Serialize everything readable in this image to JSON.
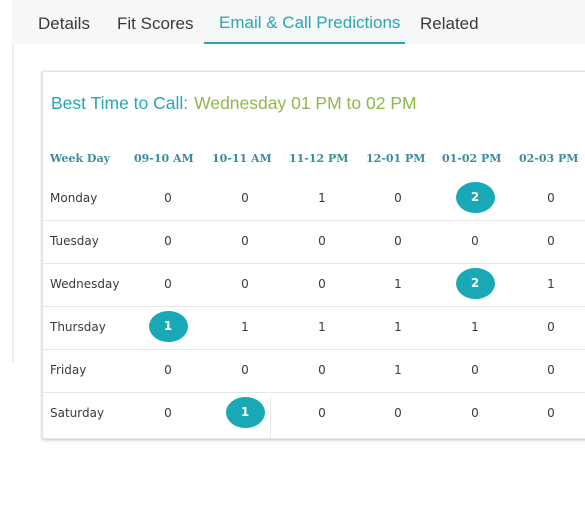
{
  "tabs": [
    {
      "label": "Details",
      "active": false
    },
    {
      "label": "Fit Scores",
      "active": false
    },
    {
      "label": "Email & Call Predictions",
      "active": true
    },
    {
      "label": "Related",
      "active": false
    }
  ],
  "best_time": {
    "label": "Best Time to Call:",
    "value": "Wednesday 01 PM to 02 PM"
  },
  "table": {
    "headers": [
      "Week Day",
      "09-10 AM",
      "10-11 AM",
      "11-12 PM",
      "12-01 PM",
      "01-02 PM",
      "02-03 PM"
    ],
    "rows": [
      {
        "day": "Monday",
        "values": [
          "0",
          "0",
          "1",
          "0",
          "2",
          "0"
        ],
        "highlight": [
          4
        ]
      },
      {
        "day": "Tuesday",
        "values": [
          "0",
          "0",
          "0",
          "0",
          "0",
          "0"
        ],
        "highlight": []
      },
      {
        "day": "Wednesday",
        "values": [
          "0",
          "0",
          "0",
          "1",
          "2",
          "1"
        ],
        "highlight": [
          4
        ]
      },
      {
        "day": "Thursday",
        "values": [
          "1",
          "1",
          "1",
          "1",
          "1",
          "0"
        ],
        "highlight": [
          0
        ]
      },
      {
        "day": "Friday",
        "values": [
          "0",
          "0",
          "0",
          "1",
          "0",
          "0"
        ],
        "highlight": []
      },
      {
        "day": "Saturday",
        "values": [
          "0",
          "1",
          "0",
          "0",
          "0",
          "0"
        ],
        "highlight": [
          1
        ]
      }
    ]
  },
  "colors": {
    "accent": "#2aa6b0",
    "bubble": "#19a8b5",
    "best_value": "#8db94a",
    "header_text": "#3a8d9b"
  }
}
